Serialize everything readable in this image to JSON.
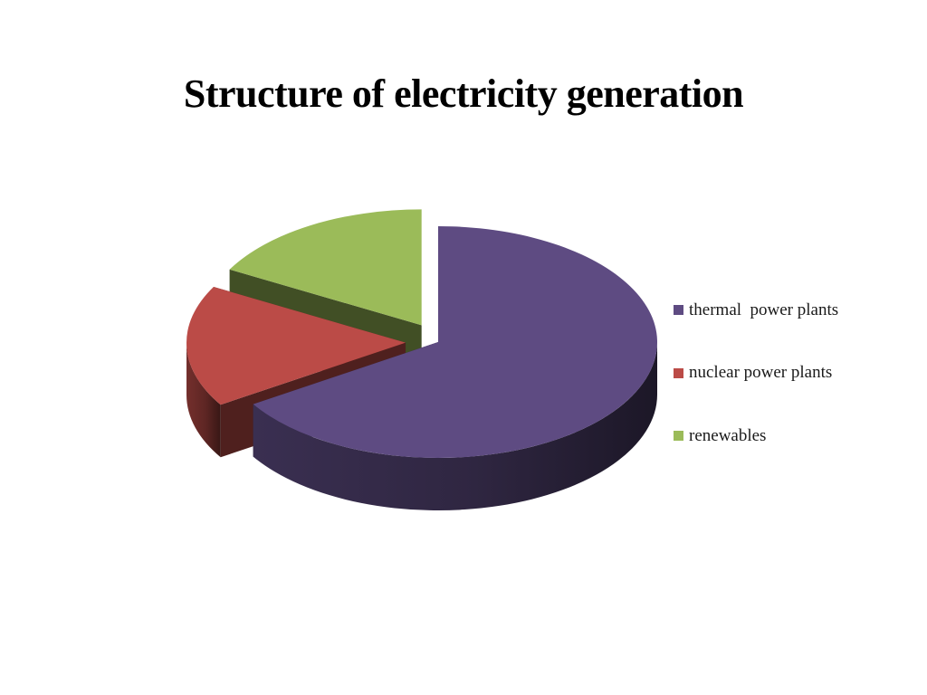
{
  "chart_data": {
    "type": "pie",
    "style": "3d-exploded",
    "title": "Structure of electricity generation",
    "legend_position": "right",
    "series": [
      {
        "labels": [
          "thermal  power plants",
          "nuclear power plants",
          "renewables"
        ],
        "values": [
          66,
          17,
          17
        ],
        "colors": [
          "#5e4b82",
          "#bb4b47",
          "#9bbb59"
        ]
      }
    ]
  }
}
